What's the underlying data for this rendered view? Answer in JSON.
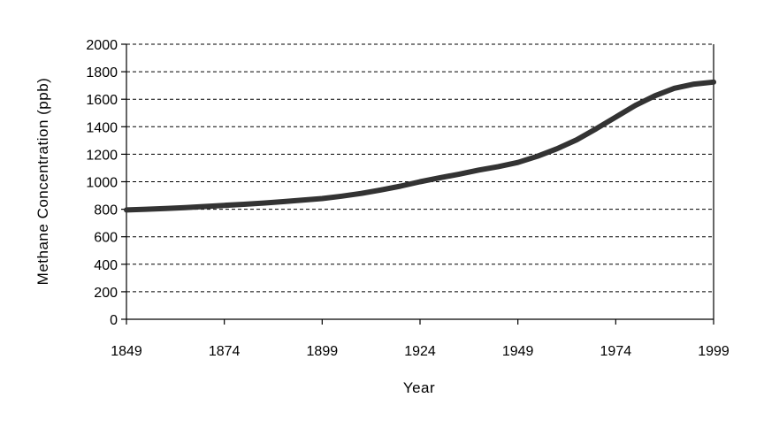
{
  "chart_data": {
    "type": "line",
    "xlabel": "Year",
    "ylabel": "Methane Concentration (ppb)",
    "xlim": [
      1849,
      1999
    ],
    "ylim": [
      0,
      2000
    ],
    "x_ticks": [
      1849,
      1874,
      1899,
      1924,
      1949,
      1974,
      1999
    ],
    "y_ticks": [
      0,
      200,
      400,
      600,
      800,
      1000,
      1200,
      1400,
      1600,
      1800,
      2000
    ],
    "grid": "horizontal dashed",
    "legend": "none",
    "line_color": "#333333",
    "series": [
      {
        "x": [
          1849,
          1854,
          1859,
          1864,
          1869,
          1874,
          1879,
          1884,
          1889,
          1894,
          1899,
          1904,
          1909,
          1914,
          1919,
          1924,
          1929,
          1934,
          1939,
          1944,
          1949,
          1954,
          1959,
          1964,
          1969,
          1974,
          1979,
          1984,
          1989,
          1994,
          1999
        ],
        "y": [
          795,
          800,
          805,
          812,
          820,
          828,
          836,
          845,
          855,
          866,
          878,
          895,
          915,
          940,
          968,
          1000,
          1028,
          1055,
          1085,
          1110,
          1140,
          1185,
          1240,
          1305,
          1385,
          1470,
          1555,
          1625,
          1680,
          1710,
          1725
        ]
      }
    ]
  }
}
